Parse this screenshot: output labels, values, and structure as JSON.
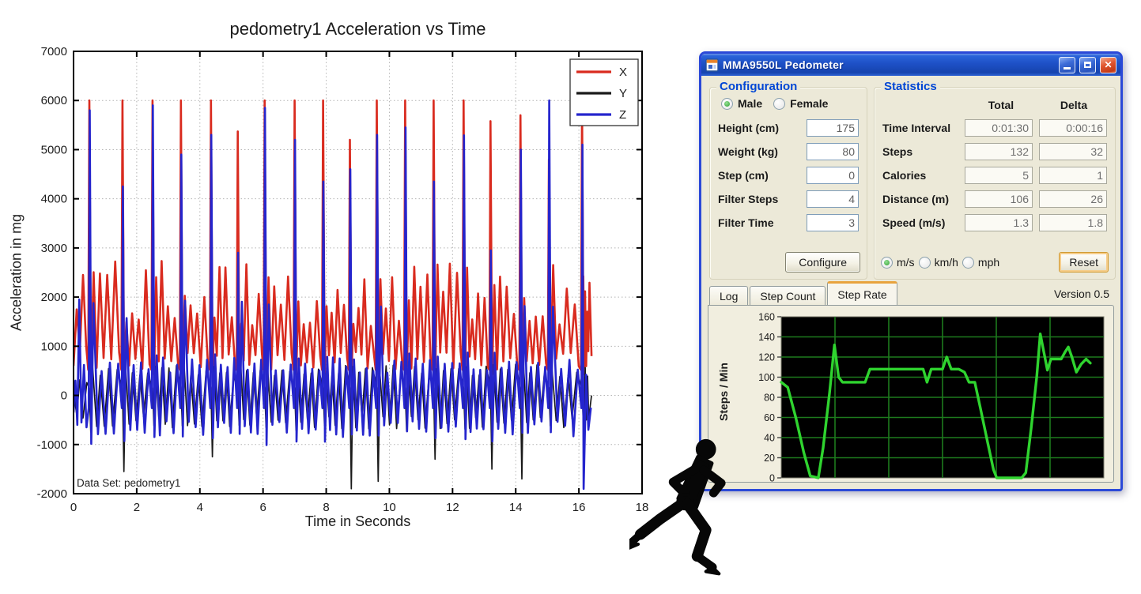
{
  "colors": {
    "titlebar_blue": "#1e50c6",
    "dialog_bg": "#ece9d8",
    "window_border": "#2b49d8",
    "groupbox_label": "#0046d5",
    "series_x": "#d92b1f",
    "series_y": "#1a1a1a",
    "series_z": "#2525cd",
    "rate_line": "#2fd42f",
    "rate_grid": "#1d7a1d",
    "rate_bg": "#000000"
  },
  "window": {
    "title": "MMA9550L Pedometer",
    "controls": {
      "minimize": "minimize",
      "maximize": "maximize",
      "close": "close"
    },
    "version": "Version 0.5",
    "config": {
      "group_label": "Configuration",
      "gender_options": [
        {
          "label": "Male",
          "selected": true
        },
        {
          "label": "Female",
          "selected": false
        }
      ],
      "rows": [
        {
          "label": "Height (cm)",
          "value": "175"
        },
        {
          "label": "Weight (kg)",
          "value": "80"
        },
        {
          "label": "Step (cm)",
          "value": "0"
        },
        {
          "label": "Filter Steps",
          "value": "4"
        },
        {
          "label": "Filter Time",
          "value": "3"
        }
      ],
      "configure_button": "Configure"
    },
    "stats": {
      "group_label": "Statistics",
      "col_headers": [
        "Total",
        "Delta"
      ],
      "rows": [
        {
          "label": "Time Interval",
          "total": "0:01:30",
          "delta": "0:00:16"
        },
        {
          "label": "Steps",
          "total": "132",
          "delta": "32"
        },
        {
          "label": "Calories",
          "total": "5",
          "delta": "1"
        },
        {
          "label": "Distance (m)",
          "total": "106",
          "delta": "26"
        },
        {
          "label": "Speed (m/s)",
          "total": "1.3",
          "delta": "1.8"
        }
      ],
      "unit_options": [
        {
          "label": "m/s",
          "selected": true
        },
        {
          "label": "km/h",
          "selected": false
        },
        {
          "label": "mph",
          "selected": false
        }
      ],
      "reset_button": "Reset"
    },
    "tabs": [
      {
        "label": "Log",
        "active": false
      },
      {
        "label": "Step Count",
        "active": false
      },
      {
        "label": "Step Rate",
        "active": true
      }
    ]
  },
  "chart_data": [
    {
      "type": "line",
      "title": "pedometry1 Acceleration vs Time",
      "xlabel": "Time in Seconds",
      "ylabel": "Acceleration in mg",
      "annotation": "Data Set: pedometry1",
      "xlim": [
        0,
        18
      ],
      "ylim": [
        -2000,
        7000
      ],
      "xticks": [
        0,
        2,
        4,
        6,
        8,
        10,
        12,
        14,
        16,
        18
      ],
      "yticks": [
        -2000,
        -1000,
        0,
        1000,
        2000,
        3000,
        4000,
        5000,
        6000,
        7000
      ],
      "grid": true,
      "legend_position": "top-right",
      "series": [
        {
          "name": "X",
          "color": "#d92b1f"
        },
        {
          "name": "Y",
          "color": "#1a1a1a"
        },
        {
          "name": "Z",
          "color": "#2525cd"
        }
      ],
      "signal_end": 16.4,
      "step_times": [
        0.5,
        1.55,
        2.5,
        3.4,
        4.35,
        5.2,
        6.05,
        7.0,
        7.9,
        8.75,
        9.6,
        10.5,
        11.4,
        12.35,
        13.2,
        14.15,
        15.05,
        16.1
      ],
      "x_peaks": [
        6000,
        6000,
        6000,
        6000,
        6000,
        5370,
        6000,
        6000,
        6000,
        5200,
        6000,
        6000,
        6000,
        6000,
        5580,
        5700,
        4800,
        5900
      ],
      "z_peaks": [
        5800,
        4250,
        5900,
        4900,
        5300,
        2900,
        5850,
        5200,
        4350,
        4600,
        5300,
        5450,
        4350,
        5290,
        2950,
        5000,
        6000,
        5100
      ],
      "y_dips": {
        "1": -1550,
        "4": -1250,
        "9": -1900,
        "10": -1750,
        "12": -1300,
        "14": -1500,
        "15": -1700
      },
      "z_end_dip": -1900,
      "baseline_ranges": {
        "x": [
          450,
          2750
        ],
        "y": [
          -700,
          650
        ],
        "z": [
          -900,
          1950
        ]
      }
    },
    {
      "type": "line",
      "ylabel": "Steps / Min",
      "ylim": [
        0,
        160
      ],
      "yticks": [
        0,
        20,
        40,
        60,
        80,
        100,
        120,
        140,
        160
      ],
      "x_grid_divisions": 6,
      "points": [
        [
          0,
          95
        ],
        [
          0.02,
          90
        ],
        [
          0.045,
          60
        ],
        [
          0.07,
          25
        ],
        [
          0.09,
          2
        ],
        [
          0.115,
          0
        ],
        [
          0.13,
          30
        ],
        [
          0.15,
          85
        ],
        [
          0.165,
          132
        ],
        [
          0.178,
          100
        ],
        [
          0.19,
          95
        ],
        [
          0.26,
          95
        ],
        [
          0.275,
          108
        ],
        [
          0.44,
          108
        ],
        [
          0.452,
          95
        ],
        [
          0.465,
          108
        ],
        [
          0.5,
          108
        ],
        [
          0.513,
          120
        ],
        [
          0.527,
          108
        ],
        [
          0.55,
          108
        ],
        [
          0.568,
          105
        ],
        [
          0.582,
          95
        ],
        [
          0.6,
          95
        ],
        [
          0.617,
          70
        ],
        [
          0.64,
          35
        ],
        [
          0.658,
          8
        ],
        [
          0.668,
          0
        ],
        [
          0.745,
          0
        ],
        [
          0.758,
          5
        ],
        [
          0.775,
          50
        ],
        [
          0.792,
          100
        ],
        [
          0.803,
          143
        ],
        [
          0.814,
          125
        ],
        [
          0.825,
          107
        ],
        [
          0.836,
          118
        ],
        [
          0.868,
          118
        ],
        [
          0.88,
          125
        ],
        [
          0.89,
          130
        ],
        [
          0.901,
          120
        ],
        [
          0.915,
          105
        ],
        [
          0.93,
          113
        ],
        [
          0.945,
          118
        ],
        [
          0.958,
          114
        ]
      ]
    }
  ]
}
